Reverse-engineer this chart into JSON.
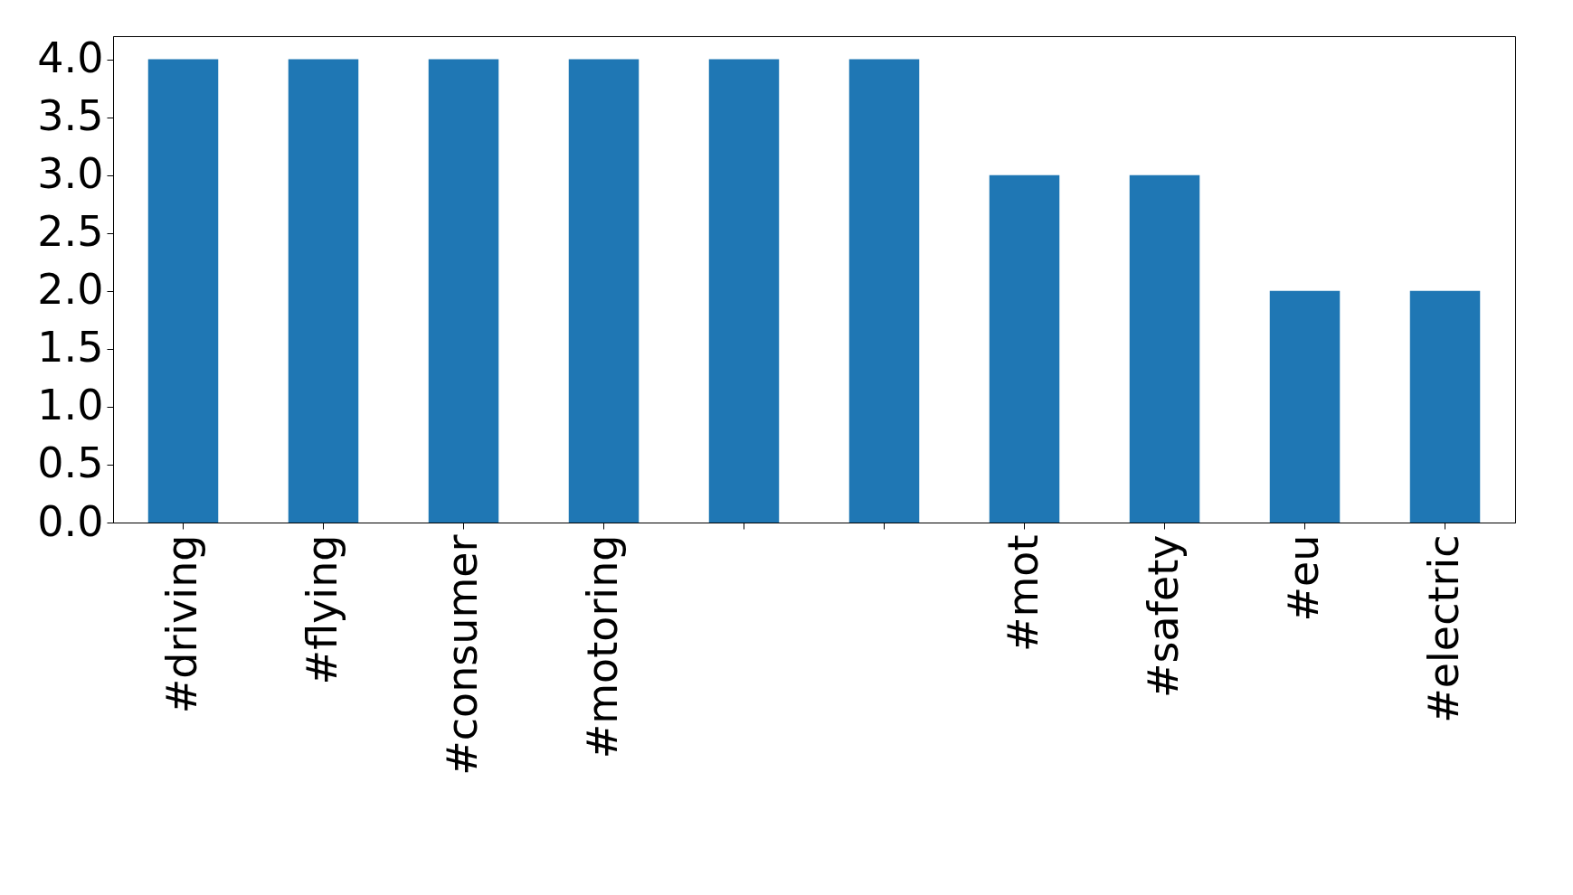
{
  "chart_data": {
    "type": "bar",
    "categories": [
      "#driving",
      "#flying",
      "#consumer",
      "#motoring",
      null,
      null,
      "#mot",
      "#safety",
      "#eu",
      "#electric"
    ],
    "values": [
      4,
      4,
      4,
      4,
      4,
      4,
      3,
      3,
      2,
      2
    ],
    "color": "#1f77b4",
    "ylim": [
      0,
      4.2
    ],
    "yticks": [
      {
        "value": 0,
        "label": "0.0"
      },
      {
        "value": 0.5,
        "label": "0.5"
      },
      {
        "value": 1,
        "label": "1.0"
      },
      {
        "value": 1.5,
        "label": "1.5"
      },
      {
        "value": 2,
        "label": "2.0"
      },
      {
        "value": 2.5,
        "label": "2.5"
      },
      {
        "value": 3,
        "label": "3.0"
      },
      {
        "value": 3.5,
        "label": "3.5"
      },
      {
        "value": 4,
        "label": "4.0"
      }
    ],
    "grid": false
  }
}
